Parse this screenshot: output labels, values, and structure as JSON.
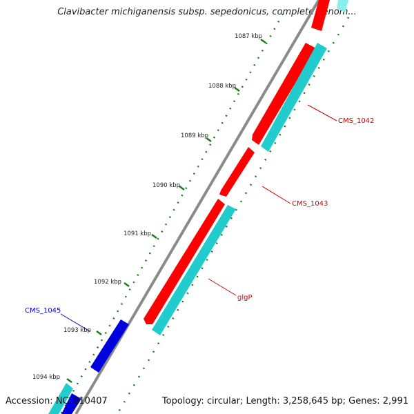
{
  "title": "Clavibacter michiganensis subsp. sepedonicus, complete genom...",
  "footer": {
    "accession": "Accession: NC_010407",
    "summary": "Topology: circular; Length: 3,258,645 bp; Genes: 2,991"
  },
  "colors": {
    "backbone": "#888888",
    "forward_gene": "#ff0000",
    "forward_cds": "#22cccc",
    "reverse_gene": "#0000dd",
    "tick": "#1a7a1a",
    "label_forward": "#cc0000",
    "label_reverse": "#0000cc"
  },
  "ticks": [
    {
      "label": "1087 kbp"
    },
    {
      "label": "1088 kbp"
    },
    {
      "label": "1089 kbp"
    },
    {
      "label": "1090 kbp"
    },
    {
      "label": "1091 kbp"
    },
    {
      "label": "1092 kbp"
    },
    {
      "label": "1093 kbp"
    },
    {
      "label": "1094 kbp"
    }
  ],
  "features": [
    {
      "label": "CMS_1042",
      "strand": "forward"
    },
    {
      "label": "CMS_1043",
      "strand": "forward"
    },
    {
      "label": "glgP",
      "strand": "forward"
    },
    {
      "label": "CMS_1045",
      "strand": "reverse"
    }
  ]
}
